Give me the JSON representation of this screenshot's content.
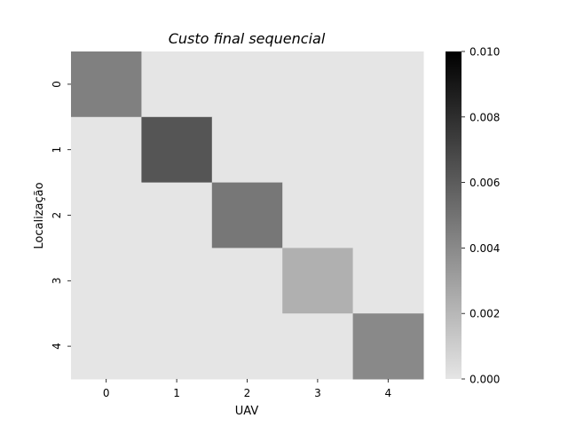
{
  "chart_data": {
    "type": "heatmap",
    "title": "Custo final sequencial",
    "xlabel": "UAV",
    "ylabel": "Localização",
    "x_categories": [
      "0",
      "1",
      "2",
      "3",
      "4"
    ],
    "y_categories": [
      "0",
      "1",
      "2",
      "3",
      "4"
    ],
    "values": [
      [
        0.0044,
        0.0,
        0.0,
        0.0,
        0.0
      ],
      [
        0.0,
        0.0063,
        0.0,
        0.0,
        0.0
      ],
      [
        0.0,
        0.0,
        0.0048,
        0.0,
        0.0
      ],
      [
        0.0,
        0.0,
        0.0,
        0.0023,
        0.0
      ],
      [
        0.0,
        0.0,
        0.0,
        0.0,
        0.004
      ]
    ],
    "colorbar": {
      "vmin": 0.0,
      "vmax": 0.01,
      "ticks": [
        "0.000",
        "0.002",
        "0.004",
        "0.006",
        "0.008",
        "0.010"
      ],
      "color_low": "#e5e5e5",
      "color_high": "#000000"
    }
  }
}
